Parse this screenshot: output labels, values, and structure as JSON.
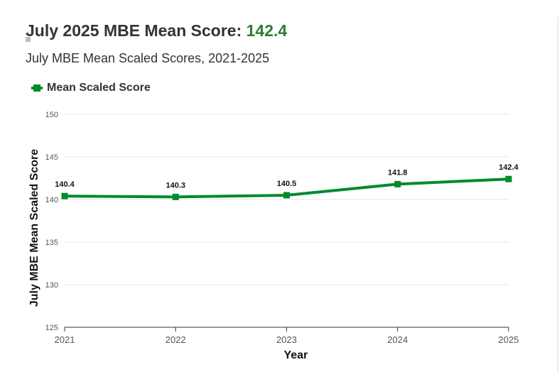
{
  "header": {
    "title_prefix": "July 2025 MBE Mean Score: ",
    "title_value": "142.4",
    "subtitle": "July MBE Mean Scaled Scores, 2021-2025"
  },
  "colors": {
    "series": "#008a2e",
    "title_value": "#2e7d32",
    "grid": "#e6e6e6",
    "axis": "#333333"
  },
  "chart_data": {
    "type": "line",
    "title": "July MBE Mean Scaled Scores, 2021-2025",
    "xlabel": "Year",
    "ylabel": "July MBE Mean Scaled Score",
    "categories": [
      "2021",
      "2022",
      "2023",
      "2024",
      "2025"
    ],
    "series": [
      {
        "name": "Mean Scaled Score",
        "values": [
          140.4,
          140.3,
          140.5,
          141.8,
          142.4
        ]
      }
    ],
    "ylim": [
      125,
      150
    ],
    "yticks": [
      125,
      130,
      135,
      140,
      145,
      150
    ],
    "grid": true,
    "legend": "top-left"
  }
}
